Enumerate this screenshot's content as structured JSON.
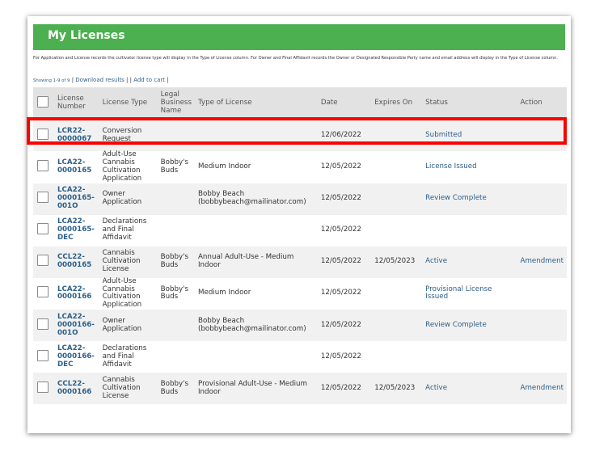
{
  "header": {
    "title": "My Licenses"
  },
  "notice": "For Application and License records the cultivator license type will display in the Type of License column.  For Owner and Final Affidavit records the Owner or Designated Responsible Party name and email address will display in the Type of License column.",
  "links": {
    "showing": "Showing 1-9 of 9",
    "download": "Download results",
    "add_to_cart": "Add to cart"
  },
  "columns": {
    "license_number": "License Number",
    "license_type": "License Type",
    "legal_business_name": "Legal Business Name",
    "type_of_license": "Type of License",
    "date": "Date",
    "expires_on": "Expires On",
    "status": "Status",
    "action": "Action"
  },
  "rows": [
    {
      "number": "LCR22-0000067",
      "type": "Conversion Request",
      "business": "",
      "type_of_license": "",
      "date": "12/06/2022",
      "expires": "",
      "status": "Submitted",
      "action": ""
    },
    {
      "number": "LCA22-0000165",
      "type": "Adult-Use Cannabis Cultivation Application",
      "business": "Bobby's Buds",
      "type_of_license": "Medium Indoor",
      "date": "12/05/2022",
      "expires": "",
      "status": "License Issued",
      "action": ""
    },
    {
      "number": "LCA22-0000165-001O",
      "type": "Owner Application",
      "business": "",
      "type_of_license": "Bobby Beach (bobbybeach@mailinator.com)",
      "date": "12/05/2022",
      "expires": "",
      "status": "Review Complete",
      "action": ""
    },
    {
      "number": "LCA22-0000165-DEC",
      "type": "Declarations and Final Affidavit",
      "business": "",
      "type_of_license": "",
      "date": "12/05/2022",
      "expires": "",
      "status": "",
      "action": ""
    },
    {
      "number": "CCL22-0000165",
      "type": "Cannabis Cultivation License",
      "business": "Bobby's Buds",
      "type_of_license": "Annual Adult-Use - Medium Indoor",
      "date": "12/05/2022",
      "expires": "12/05/2023",
      "status": "Active",
      "action": "Amendment"
    },
    {
      "number": "LCA22-0000166",
      "type": "Adult-Use Cannabis Cultivation Application",
      "business": "Bobby's Buds",
      "type_of_license": "Medium Indoor",
      "date": "12/05/2022",
      "expires": "",
      "status": "Provisional License Issued",
      "action": ""
    },
    {
      "number": "LCA22-0000166-001O",
      "type": "Owner Application",
      "business": "",
      "type_of_license": "Bobby Beach (bobbybeach@mailinator.com)",
      "date": "12/05/2022",
      "expires": "",
      "status": "Review Complete",
      "action": ""
    },
    {
      "number": "LCA22-0000166-DEC",
      "type": "Declarations and Final Affidavit",
      "business": "",
      "type_of_license": "",
      "date": "12/05/2022",
      "expires": "",
      "status": "",
      "action": ""
    },
    {
      "number": "CCL22-0000166",
      "type": "Cannabis Cultivation License",
      "business": "Bobby's Buds",
      "type_of_license": "Provisional Adult-Use - Medium Indoor",
      "date": "12/05/2022",
      "expires": "12/05/2023",
      "status": "Active",
      "action": "Amendment"
    }
  ],
  "colors": {
    "header_bg": "#4caf50",
    "link": "#2c5f8a",
    "highlight": "#ff0000",
    "row_alt": "#f1f1f1",
    "table_header_bg": "#e2e2e2"
  }
}
